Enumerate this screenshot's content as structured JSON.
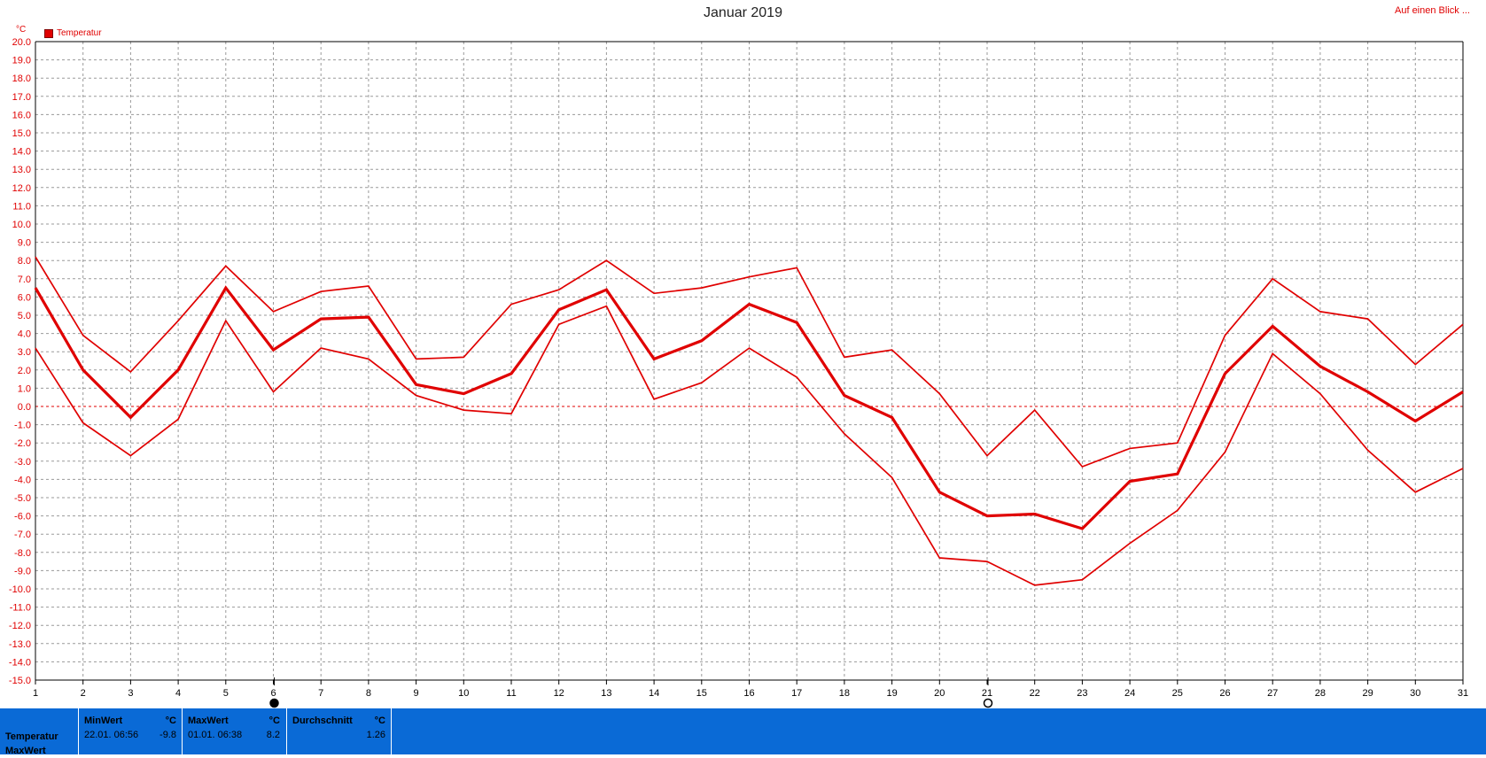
{
  "header": {
    "title": "Januar 2019",
    "link_label": "Auf einen Blick ..."
  },
  "chart_data": {
    "type": "line",
    "title": "Januar 2019",
    "y_unit_label": "°C",
    "ylim": [
      -15,
      20
    ],
    "y_ticks": [
      "20.0",
      "19.0",
      "18.0",
      "17.0",
      "16.0",
      "15.0",
      "14.0",
      "13.0",
      "12.0",
      "11.0",
      "10.0",
      "9.0",
      "8.0",
      "7.0",
      "6.0",
      "5.0",
      "4.0",
      "3.0",
      "2.0",
      "1.0",
      "0.0",
      "-1.0",
      "-2.0",
      "-3.0",
      "-4.0",
      "-5.0",
      "-6.0",
      "-7.0",
      "-8.0",
      "-9.0",
      "-10.0",
      "-11.0",
      "-12.0",
      "-13.0",
      "-14.0",
      "-15.0"
    ],
    "x": [
      1,
      2,
      3,
      4,
      5,
      6,
      7,
      8,
      9,
      10,
      11,
      12,
      13,
      14,
      15,
      16,
      17,
      18,
      19,
      20,
      21,
      22,
      23,
      24,
      25,
      26,
      27,
      28,
      29,
      30,
      31
    ],
    "grid": true,
    "legend": [
      {
        "label": "Temperatur",
        "color": "#e00000"
      }
    ],
    "series": [
      {
        "name": "Temperatur",
        "color": "#e00000",
        "values": [
          8.2,
          3.9,
          1.9,
          4.7,
          7.7,
          5.2,
          6.3,
          6.6,
          2.6,
          2.7,
          5.6,
          6.4,
          8.0,
          6.2,
          6.5,
          7.1,
          7.6,
          2.7,
          3.1,
          0.7,
          -2.7,
          -0.2,
          -3.3,
          -2.3,
          -2.0,
          3.9,
          7.0,
          5.2,
          4.8,
          2.3,
          4.5
        ]
      },
      {
        "color": "#e00000",
        "bold": true,
        "values": [
          6.5,
          2.0,
          -0.6,
          2.0,
          6.5,
          3.1,
          4.8,
          4.9,
          1.2,
          0.7,
          1.8,
          5.3,
          6.4,
          2.6,
          3.6,
          5.6,
          4.6,
          0.6,
          -0.6,
          -4.7,
          -6.0,
          -5.9,
          -6.7,
          -4.1,
          -3.7,
          1.8,
          4.4,
          2.2,
          0.8,
          -0.8,
          0.8
        ]
      },
      {
        "color": "#e00000",
        "values": [
          3.2,
          -0.9,
          -2.7,
          -0.7,
          4.7,
          0.8,
          3.2,
          2.6,
          0.6,
          -0.2,
          -0.4,
          4.5,
          5.5,
          0.4,
          1.3,
          3.2,
          1.6,
          -1.5,
          -3.9,
          -8.3,
          -8.5,
          -9.8,
          -9.5,
          -7.5,
          -5.7,
          -2.5,
          2.9,
          0.7,
          -2.4,
          -4.7,
          -3.4
        ]
      }
    ]
  },
  "footer": {
    "row_label_1": "Temperatur",
    "row_label_2": "MaxWert",
    "min": {
      "header": "MinWert",
      "unit": "°C",
      "datetime": "22.01.  06:56",
      "value": "-9.8"
    },
    "max": {
      "header": "MaxWert",
      "unit": "°C",
      "datetime": "01.01.  06:38",
      "value": "8.2"
    },
    "avg": {
      "header": "Durchschnitt",
      "unit": "°C",
      "value": "1.26"
    }
  }
}
